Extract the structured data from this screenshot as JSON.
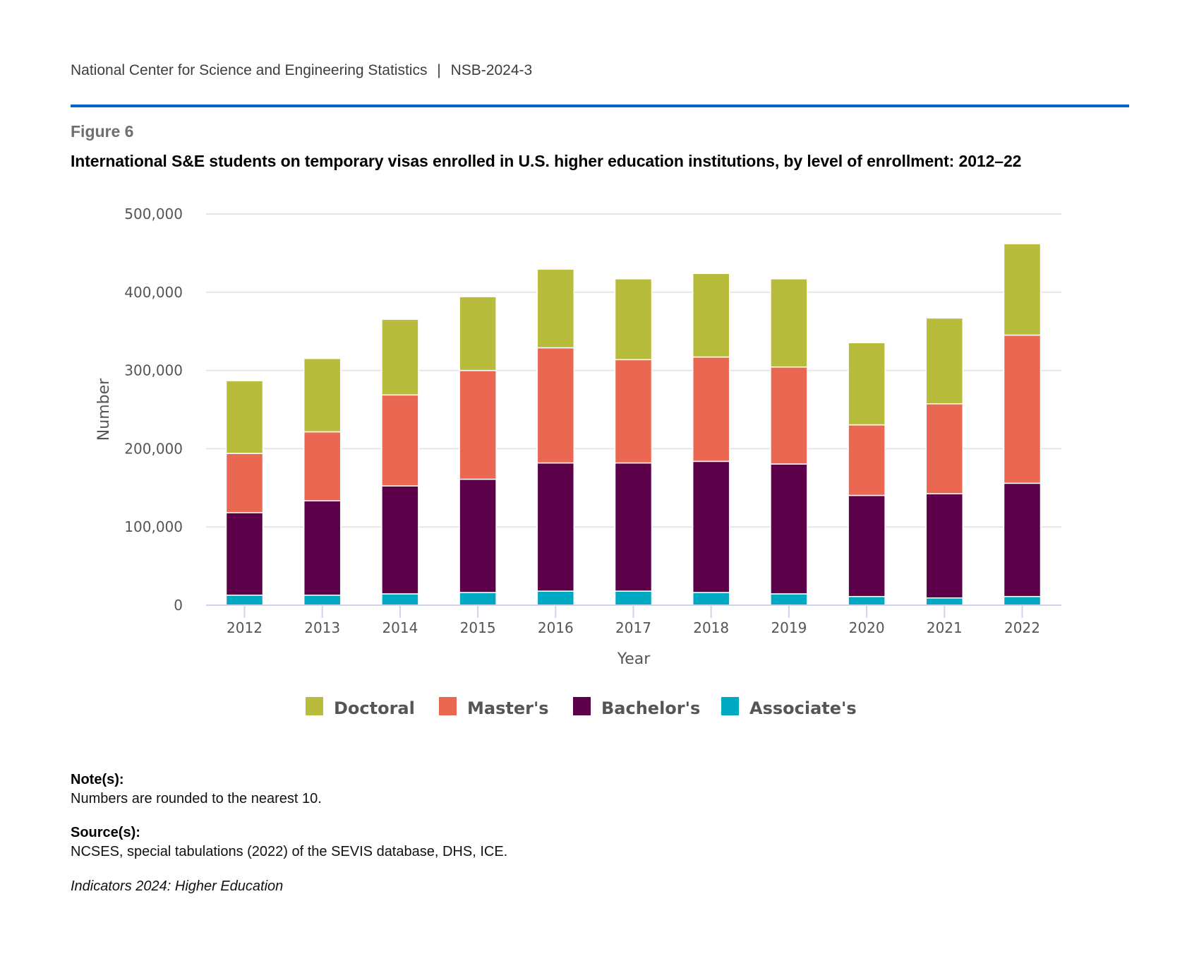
{
  "header": {
    "org": "National Center for Science and Engineering Statistics",
    "separator": "|",
    "report_id": "NSB-2024-3"
  },
  "figure": {
    "label": "Figure 6",
    "title": "International S&E students on temporary visas enrolled in U.S. higher education institutions, by level of enrollment: 2012–22"
  },
  "chart_data": {
    "type": "bar",
    "stacked": true,
    "title": "International S&E students on temporary visas enrolled in U.S. higher education institutions, by level of enrollment: 2012–22",
    "xlabel": "Year",
    "ylabel": "Number",
    "ylim": [
      0,
      500000
    ],
    "yticks": [
      0,
      100000,
      200000,
      300000,
      400000,
      500000
    ],
    "ytick_labels": [
      "0",
      "100,000",
      "200,000",
      "300,000",
      "400,000",
      "500,000"
    ],
    "grid": true,
    "legend_position": "bottom",
    "categories": [
      "2012",
      "2013",
      "2014",
      "2015",
      "2016",
      "2017",
      "2018",
      "2019",
      "2020",
      "2021",
      "2022"
    ],
    "series": [
      {
        "name": "Associate's",
        "color": "#00a9c2",
        "values": [
          12800,
          12800,
          14500,
          16200,
          18000,
          18000,
          16200,
          14500,
          11100,
          9300,
          11100
        ]
      },
      {
        "name": "Bachelor's",
        "color": "#5c004a",
        "values": [
          105500,
          120600,
          138000,
          144800,
          163800,
          163800,
          167600,
          165900,
          129200,
          133100,
          144700
        ]
      },
      {
        "name": "Master's",
        "color": "#ea6851",
        "values": [
          75700,
          88200,
          116200,
          139000,
          147200,
          132000,
          133400,
          124000,
          90200,
          115000,
          189400
        ]
      },
      {
        "name": "Doctoral",
        "color": "#b8bc3c",
        "values": [
          92900,
          93700,
          96700,
          94300,
          100500,
          103300,
          106800,
          112700,
          105000,
          109600,
          116800
        ]
      }
    ],
    "legend_order": [
      "Doctoral",
      "Master's",
      "Bachelor's",
      "Associate's"
    ]
  },
  "notes": {
    "note_heading": "Note(s):",
    "note_text": "Numbers are rounded to the nearest 10.",
    "source_heading": "Source(s):",
    "source_text": "NCSES, special tabulations (2022) of the SEVIS database, DHS, ICE.",
    "citation": "Indicators 2024: Higher Education"
  },
  "colors": {
    "accent_rule": "#0066cc",
    "gridline": "#e6e6e6",
    "axis_line": "#ccd6eb"
  }
}
